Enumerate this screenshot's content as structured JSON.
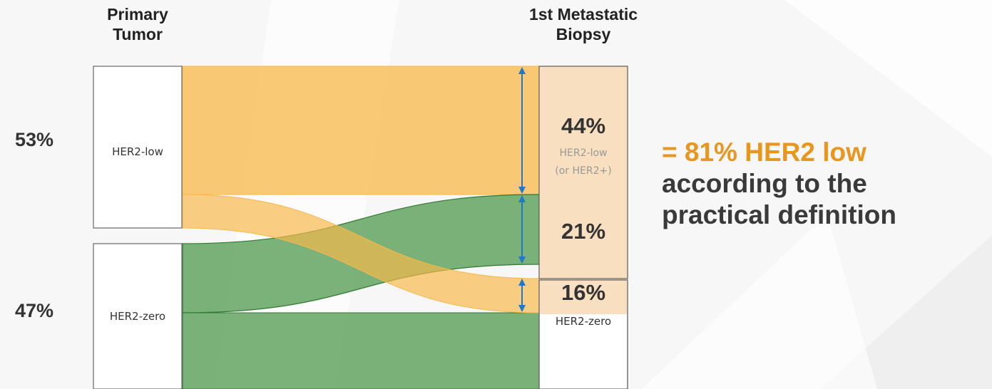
{
  "headers": {
    "primary_line1": "Primary",
    "primary_line2": "Tumor",
    "meta_line1": "1st Metastatic",
    "meta_line2": "Biopsy"
  },
  "primary": {
    "low": {
      "pct": "53%",
      "label": "HER2-low"
    },
    "zero": {
      "pct": "47%",
      "label": "HER2-zero"
    }
  },
  "metastatic": {
    "low_pct": "44%",
    "low_label1": "HER2-low",
    "low_label2": "(or HER2+)",
    "zero_to_low_pct": "21%",
    "low_to_zero_pct": "16%",
    "zero_label": "HER2-zero"
  },
  "conclusion": {
    "highlight": "= 81% HER2 low",
    "line2": "according to the",
    "line3": "practical definition"
  },
  "colors": {
    "low": "#f8b84a",
    "zero": "#4f9a4f",
    "highlight": "#e8961e",
    "arrow": "#1f78c8",
    "meta_box": "#f7ddba"
  }
}
